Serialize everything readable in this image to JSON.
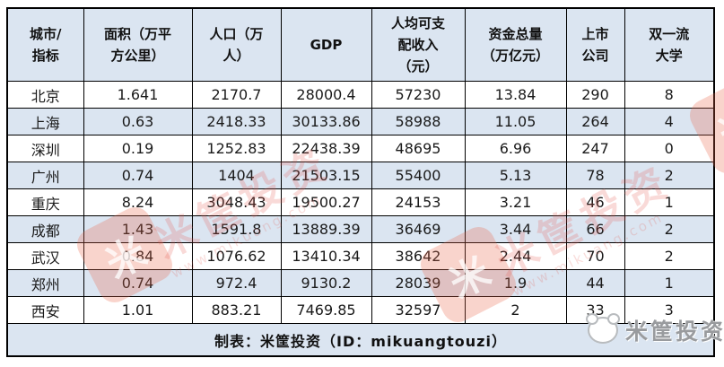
{
  "chart_data": {
    "type": "table",
    "columns": [
      "城市/\n指标",
      "面积（万平\n方公里）",
      "人口（万\n人）",
      "GDP",
      "人均可支\n配收入\n（元）",
      "资金总量\n（万亿元）",
      "上市\n公司",
      "双一流\n大学"
    ],
    "rows": [
      [
        "北京",
        "1.641",
        "2170.7",
        "28000.4",
        "57230",
        "13.84",
        "290",
        "8"
      ],
      [
        "上海",
        "0.63",
        "2418.33",
        "30133.86",
        "58988",
        "11.05",
        "264",
        "4"
      ],
      [
        "深圳",
        "0.19",
        "1252.83",
        "22438.39",
        "48695",
        "6.96",
        "247",
        "0"
      ],
      [
        "广州",
        "0.74",
        "1404",
        "21503.15",
        "55400",
        "5.13",
        "78",
        "2"
      ],
      [
        "重庆",
        "8.24",
        "3048.43",
        "19500.27",
        "24153",
        "3.21",
        "46",
        "1"
      ],
      [
        "成都",
        "1.43",
        "1591.8",
        "13889.39",
        "36469",
        "3.44",
        "66",
        "2"
      ],
      [
        "武汉",
        "0.84",
        "1076.62",
        "13410.34",
        "38642",
        "2.44",
        "70",
        "2"
      ],
      [
        "郑州",
        "0.74",
        "972.4",
        "9130.2",
        "28039",
        "1.9",
        "44",
        "1"
      ],
      [
        "西安",
        "1.01",
        "883.21",
        "7469.85",
        "32597",
        "2",
        "33",
        "3"
      ]
    ],
    "footer": "制表：米筐投资（ID：mikuangtouzi）"
  },
  "watermark": {
    "brand": "米筐投资",
    "url": "www.mikuang.com",
    "logo_glyph": "米"
  },
  "corner_logo": {
    "label": "米筐投资"
  },
  "colors": {
    "band_fill": "#dbe5f1",
    "border": "#000000",
    "watermark_red": "#e2574c",
    "corner_gray": "#949699"
  }
}
